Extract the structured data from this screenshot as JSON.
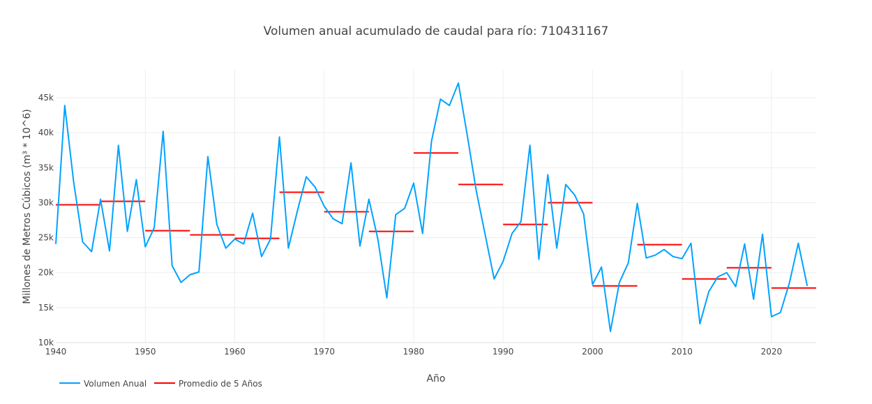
{
  "chart_data": {
    "type": "line",
    "title": "Volumen anual acumulado de caudal para río: 710431167",
    "xlabel": "Año",
    "ylabel": "Millones de Metros Cúbicos (m³ * 10^6)",
    "xlim": [
      1940,
      2025
    ],
    "ylim": [
      10000,
      49000
    ],
    "x_ticks": [
      1940,
      1950,
      1960,
      1970,
      1980,
      1990,
      2000,
      2010,
      2020
    ],
    "y_ticks": [
      10000,
      15000,
      20000,
      25000,
      30000,
      35000,
      40000,
      45000
    ],
    "y_tick_labels": [
      "10k",
      "15k",
      "20k",
      "25k",
      "30k",
      "35k",
      "40k",
      "45k"
    ],
    "grid": true,
    "legend_position": "bottom-left",
    "series": [
      {
        "name": "Volumen Anual",
        "color": "#00a2ff",
        "x": [
          1940,
          1941,
          1942,
          1943,
          1944,
          1945,
          1946,
          1947,
          1948,
          1949,
          1950,
          1951,
          1952,
          1953,
          1954,
          1955,
          1956,
          1957,
          1958,
          1959,
          1960,
          1961,
          1962,
          1963,
          1964,
          1965,
          1966,
          1967,
          1968,
          1969,
          1970,
          1971,
          1972,
          1973,
          1974,
          1975,
          1976,
          1977,
          1978,
          1979,
          1980,
          1981,
          1982,
          1983,
          1984,
          1985,
          1986,
          1987,
          1988,
          1989,
          1990,
          1991,
          1992,
          1993,
          1994,
          1995,
          1996,
          1997,
          1998,
          1999,
          2000,
          2001,
          2002,
          2003,
          2004,
          2005,
          2006,
          2007,
          2008,
          2009,
          2010,
          2011,
          2012,
          2013,
          2014,
          2015,
          2016,
          2017,
          2018,
          2019,
          2020,
          2021,
          2022,
          2023,
          2024
        ],
        "y": [
          24100,
          43900,
          32900,
          24400,
          23000,
          30500,
          23100,
          38200,
          25900,
          33300,
          23700,
          26400,
          40200,
          21000,
          18600,
          19700,
          20100,
          36600,
          26900,
          23500,
          24800,
          24100,
          28500,
          22300,
          24800,
          39400,
          23500,
          28800,
          33700,
          32200,
          29500,
          27700,
          27000,
          35700,
          23800,
          30500,
          24800,
          16400,
          28300,
          29200,
          32800,
          25600,
          38800,
          44800,
          43900,
          47100,
          39600,
          31700,
          25400,
          19100,
          21600,
          25600,
          27300,
          38200,
          21900,
          34000,
          23500,
          32600,
          31100,
          28400,
          18300,
          20800,
          11600,
          18600,
          21400,
          29900,
          22100,
          22500,
          23300,
          22300,
          22000,
          24200,
          12700,
          17300,
          19400,
          20000,
          18000,
          24100,
          16200,
          25500,
          13700,
          14300,
          18500,
          24200,
          18100
        ]
      },
      {
        "name": "Promedio de 5 Años",
        "color": "#ff0000",
        "segments": [
          {
            "start": 1940,
            "end": 1945,
            "value": 29700
          },
          {
            "start": 1945,
            "end": 1950,
            "value": 30200
          },
          {
            "start": 1950,
            "end": 1955,
            "value": 26000
          },
          {
            "start": 1955,
            "end": 1960,
            "value": 25400
          },
          {
            "start": 1960,
            "end": 1965,
            "value": 24900
          },
          {
            "start": 1965,
            "end": 1970,
            "value": 31500
          },
          {
            "start": 1970,
            "end": 1975,
            "value": 28700
          },
          {
            "start": 1975,
            "end": 1980,
            "value": 25900
          },
          {
            "start": 1980,
            "end": 1985,
            "value": 37100
          },
          {
            "start": 1985,
            "end": 1990,
            "value": 32600
          },
          {
            "start": 1990,
            "end": 1995,
            "value": 26900
          },
          {
            "start": 1995,
            "end": 2000,
            "value": 30000
          },
          {
            "start": 2000,
            "end": 2005,
            "value": 18100
          },
          {
            "start": 2005,
            "end": 2010,
            "value": 24000
          },
          {
            "start": 2010,
            "end": 2015,
            "value": 19100
          },
          {
            "start": 2015,
            "end": 2020,
            "value": 20700
          },
          {
            "start": 2020,
            "end": 2025,
            "value": 17800
          }
        ]
      }
    ]
  }
}
